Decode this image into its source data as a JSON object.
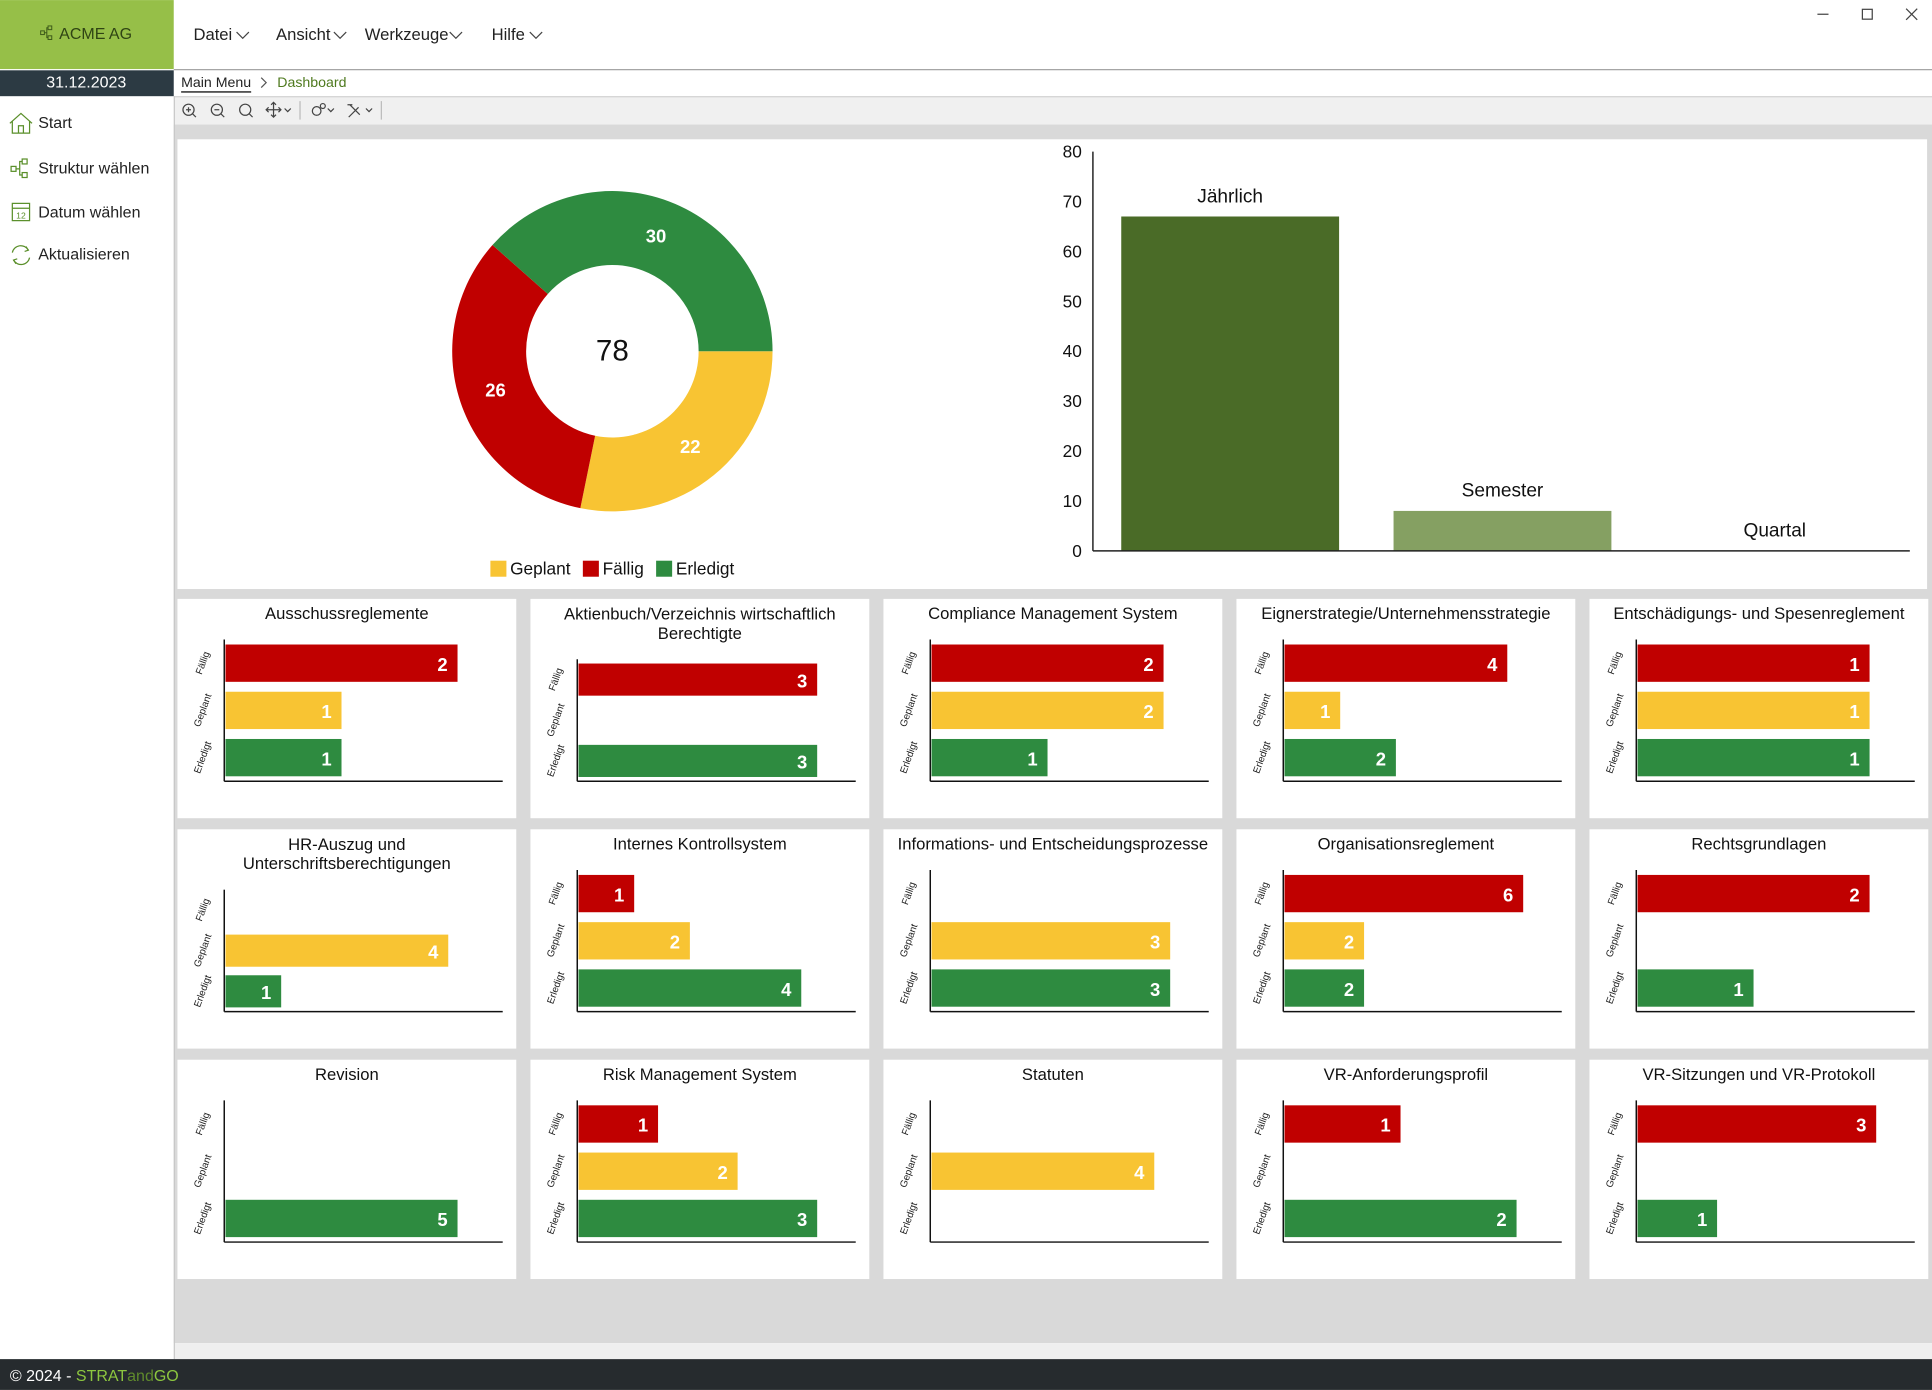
{
  "app": {
    "company": "ACME AG",
    "menu": [
      "Datei",
      "Ansicht",
      "Werkzeuge",
      "Hilfe"
    ],
    "date": "31.12.2023",
    "sidebar": [
      "Start",
      "Struktur wählen",
      "Datum wählen",
      "Aktualisieren"
    ],
    "breadcrumb": [
      "Main Menu",
      "Dashboard"
    ],
    "footer": [
      "© 2024 - ",
      "STRAT",
      "and",
      "GO"
    ]
  },
  "chart_data": [
    {
      "type": "donut",
      "total": 78,
      "categories": [
        "Geplant",
        "Fällig",
        "Erledigt"
      ],
      "values": [
        22,
        26,
        30
      ],
      "colors": [
        "#f8c433",
        "#c00000",
        "#2e8b40"
      ],
      "legend": "bottom"
    },
    {
      "type": "bar",
      "categories": [
        "Jährlich",
        "Semester",
        "Quartal"
      ],
      "values": [
        67,
        8,
        0
      ],
      "colors": [
        "#4a6b27",
        "#85a062",
        "#c3d3a8"
      ],
      "ylim": [
        0,
        80
      ],
      "yticks": [
        0,
        10,
        20,
        30,
        40,
        50,
        60,
        70,
        80
      ],
      "grid": false
    },
    {
      "type": "hbar",
      "title": "Ausschussreglemente",
      "categories": [
        "Fällig",
        "Geplant",
        "Erledigt"
      ],
      "values": [
        2,
        1,
        1
      ],
      "colors": [
        "#c00000",
        "#f8c433",
        "#2e8b40"
      ],
      "xlim": [
        0,
        2.4
      ]
    },
    {
      "type": "hbar",
      "title": "Aktienbuch/Verzeichnis wirtschaftlich Berechtigte",
      "categories": [
        "Fällig",
        "Geplant",
        "Erledigt"
      ],
      "values": [
        3,
        null,
        3
      ],
      "colors": [
        "#c00000",
        "#f8c433",
        "#2e8b40"
      ],
      "xlim": [
        0,
        3.5
      ]
    },
    {
      "type": "hbar",
      "title": "Compliance Management System",
      "categories": [
        "Fällig",
        "Geplant",
        "Erledigt"
      ],
      "values": [
        2,
        2,
        1
      ],
      "colors": [
        "#c00000",
        "#f8c433",
        "#2e8b40"
      ],
      "xlim": [
        0,
        2.4
      ]
    },
    {
      "type": "hbar",
      "title": "Eignerstrategie/Unternehmensstrategie",
      "categories": [
        "Fällig",
        "Geplant",
        "Erledigt"
      ],
      "values": [
        4,
        1,
        2
      ],
      "colors": [
        "#c00000",
        "#f8c433",
        "#2e8b40"
      ],
      "xlim": [
        0,
        5
      ]
    },
    {
      "type": "hbar",
      "title": "Entschädigungs- und Spesenreglement",
      "categories": [
        "Fällig",
        "Geplant",
        "Erledigt"
      ],
      "values": [
        1,
        1,
        1
      ],
      "colors": [
        "#c00000",
        "#f8c433",
        "#2e8b40"
      ],
      "xlim": [
        0,
        1.2
      ]
    },
    {
      "type": "hbar",
      "title": "HR-Auszug und Unterschriftsberechtigungen",
      "categories": [
        "Fällig",
        "Geplant",
        "Erledigt"
      ],
      "values": [
        null,
        4,
        1
      ],
      "colors": [
        "#c00000",
        "#f8c433",
        "#2e8b40"
      ],
      "xlim": [
        0,
        5
      ]
    },
    {
      "type": "hbar",
      "title": "Internes Kontrollsystem",
      "categories": [
        "Fällig",
        "Geplant",
        "Erledigt"
      ],
      "values": [
        1,
        2,
        4
      ],
      "colors": [
        "#c00000",
        "#f8c433",
        "#2e8b40"
      ],
      "xlim": [
        0,
        5
      ]
    },
    {
      "type": "hbar",
      "title": "Informations- und Entscheidungsprozesse",
      "categories": [
        "Fällig",
        "Geplant",
        "Erledigt"
      ],
      "values": [
        null,
        3,
        3
      ],
      "colors": [
        "#c00000",
        "#f8c433",
        "#2e8b40"
      ],
      "xlim": [
        0,
        3.5
      ]
    },
    {
      "type": "hbar",
      "title": "Organisationsreglement",
      "categories": [
        "Fällig",
        "Geplant",
        "Erledigt"
      ],
      "values": [
        6,
        2,
        2
      ],
      "colors": [
        "#c00000",
        "#f8c433",
        "#2e8b40"
      ],
      "xlim": [
        0,
        7
      ]
    },
    {
      "type": "hbar",
      "title": "Rechtsgrundlagen",
      "categories": [
        "Fällig",
        "Geplant",
        "Erledigt"
      ],
      "values": [
        2,
        null,
        1
      ],
      "colors": [
        "#c00000",
        "#f8c433",
        "#2e8b40"
      ],
      "xlim": [
        0,
        2.4
      ]
    },
    {
      "type": "hbar",
      "title": "Revision",
      "categories": [
        "Fällig",
        "Geplant",
        "Erledigt"
      ],
      "values": [
        null,
        null,
        5
      ],
      "colors": [
        "#c00000",
        "#f8c433",
        "#2e8b40"
      ],
      "xlim": [
        0,
        6
      ]
    },
    {
      "type": "hbar",
      "title": "Risk Management System",
      "categories": [
        "Fällig",
        "Geplant",
        "Erledigt"
      ],
      "values": [
        1,
        2,
        3
      ],
      "colors": [
        "#c00000",
        "#f8c433",
        "#2e8b40"
      ],
      "xlim": [
        0,
        3.5
      ]
    },
    {
      "type": "hbar",
      "title": "Statuten",
      "categories": [
        "Fällig",
        "Geplant",
        "Erledigt"
      ],
      "values": [
        null,
        4,
        null
      ],
      "colors": [
        "#c00000",
        "#f8c433",
        "#2e8b40"
      ],
      "xlim": [
        0,
        5
      ]
    },
    {
      "type": "hbar",
      "title": "VR-Anforderungsprofil",
      "categories": [
        "Fällig",
        "Geplant",
        "Erledigt"
      ],
      "values": [
        1,
        null,
        2
      ],
      "colors": [
        "#c00000",
        "#f8c433",
        "#2e8b40"
      ],
      "xlim": [
        0,
        2.4
      ]
    },
    {
      "type": "hbar",
      "title": "VR-Sitzungen und VR-Protokoll",
      "categories": [
        "Fällig",
        "Geplant",
        "Erledigt"
      ],
      "values": [
        3,
        null,
        1
      ],
      "colors": [
        "#c00000",
        "#f8c433",
        "#2e8b40"
      ],
      "xlim": [
        0,
        3.5
      ]
    }
  ]
}
